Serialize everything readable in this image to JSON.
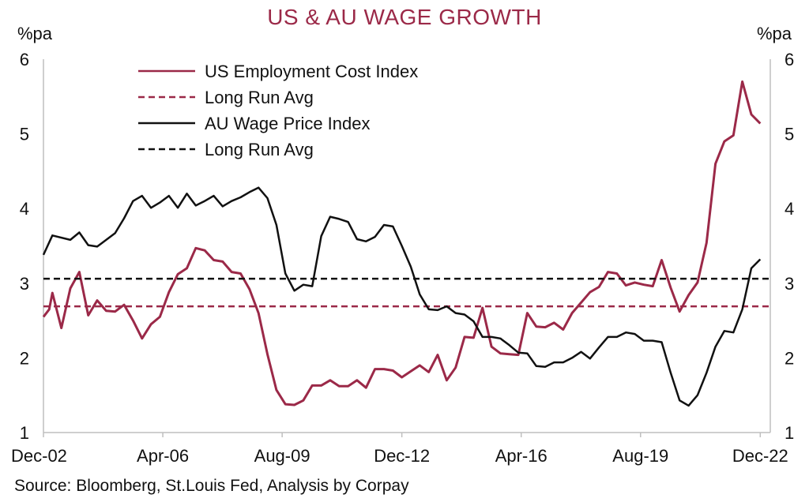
{
  "chart_data": {
    "type": "line",
    "title": "US & AU WAGE GROWTH",
    "ylabel_left": "%pa",
    "ylabel_right": "%pa",
    "source": "Source: Bloomberg, St.Louis Fed, Analysis by Corpay",
    "ylim": [
      1,
      6
    ],
    "yticks": [
      "1",
      "2",
      "3",
      "4",
      "5",
      "6"
    ],
    "xlim": [
      2002.92,
      2023.2
    ],
    "xtick_labels": [
      "Dec-02",
      "Apr-06",
      "Aug-09",
      "Dec-12",
      "Apr-16",
      "Aug-19",
      "Dec-22"
    ],
    "xtick_positions": [
      2002.92,
      2006.25,
      2009.58,
      2012.92,
      2016.25,
      2019.58,
      2022.92
    ],
    "grid": false,
    "legend_position": "top-left",
    "colors": {
      "us": "#9b2948",
      "au": "#111111",
      "title": "#9b2948"
    },
    "series": [
      {
        "name": "US Employment Cost Index",
        "style": "solid",
        "color": "#9b2948",
        "points": [
          [
            2002.92,
            2.55
          ],
          [
            2003.08,
            2.65
          ],
          [
            2003.17,
            2.87
          ],
          [
            2003.42,
            2.4
          ],
          [
            2003.67,
            2.93
          ],
          [
            2003.92,
            3.15
          ],
          [
            2004.17,
            2.57
          ],
          [
            2004.42,
            2.77
          ],
          [
            2004.67,
            2.63
          ],
          [
            2004.92,
            2.62
          ],
          [
            2005.17,
            2.71
          ],
          [
            2005.42,
            2.5
          ],
          [
            2005.67,
            2.26
          ],
          [
            2005.92,
            2.45
          ],
          [
            2006.17,
            2.55
          ],
          [
            2006.42,
            2.88
          ],
          [
            2006.67,
            3.12
          ],
          [
            2006.92,
            3.2
          ],
          [
            2007.17,
            3.47
          ],
          [
            2007.42,
            3.44
          ],
          [
            2007.67,
            3.31
          ],
          [
            2007.92,
            3.29
          ],
          [
            2008.17,
            3.15
          ],
          [
            2008.42,
            3.13
          ],
          [
            2008.67,
            2.92
          ],
          [
            2008.92,
            2.6
          ],
          [
            2009.17,
            2.05
          ],
          [
            2009.42,
            1.57
          ],
          [
            2009.67,
            1.38
          ],
          [
            2009.92,
            1.37
          ],
          [
            2010.17,
            1.43
          ],
          [
            2010.42,
            1.63
          ],
          [
            2010.67,
            1.63
          ],
          [
            2010.92,
            1.7
          ],
          [
            2011.17,
            1.62
          ],
          [
            2011.42,
            1.62
          ],
          [
            2011.67,
            1.7
          ],
          [
            2011.92,
            1.6
          ],
          [
            2012.17,
            1.85
          ],
          [
            2012.42,
            1.85
          ],
          [
            2012.67,
            1.83
          ],
          [
            2012.92,
            1.74
          ],
          [
            2013.17,
            1.82
          ],
          [
            2013.42,
            1.9
          ],
          [
            2013.67,
            1.81
          ],
          [
            2013.92,
            2.04
          ],
          [
            2014.17,
            1.7
          ],
          [
            2014.42,
            1.87
          ],
          [
            2014.67,
            2.28
          ],
          [
            2014.92,
            2.27
          ],
          [
            2015.17,
            2.67
          ],
          [
            2015.42,
            2.15
          ],
          [
            2015.67,
            2.06
          ],
          [
            2015.92,
            2.05
          ],
          [
            2016.17,
            2.04
          ],
          [
            2016.42,
            2.6
          ],
          [
            2016.67,
            2.42
          ],
          [
            2016.92,
            2.41
          ],
          [
            2017.17,
            2.47
          ],
          [
            2017.42,
            2.38
          ],
          [
            2017.67,
            2.6
          ],
          [
            2017.92,
            2.74
          ],
          [
            2018.17,
            2.88
          ],
          [
            2018.42,
            2.95
          ],
          [
            2018.67,
            3.15
          ],
          [
            2018.92,
            3.13
          ],
          [
            2019.17,
            2.97
          ],
          [
            2019.42,
            3.01
          ],
          [
            2019.67,
            2.98
          ],
          [
            2019.92,
            2.96
          ],
          [
            2020.17,
            3.31
          ],
          [
            2020.42,
            2.94
          ],
          [
            2020.67,
            2.62
          ],
          [
            2020.92,
            2.84
          ],
          [
            2021.17,
            3.01
          ],
          [
            2021.42,
            3.54
          ],
          [
            2021.67,
            4.6
          ],
          [
            2021.92,
            4.9
          ],
          [
            2022.17,
            4.98
          ],
          [
            2022.42,
            5.7
          ],
          [
            2022.67,
            5.26
          ],
          [
            2022.92,
            5.14
          ]
        ]
      },
      {
        "name": "Long Run Avg",
        "style": "dashed",
        "color": "#9b2948",
        "points": [
          [
            2002.92,
            2.69
          ],
          [
            2023.2,
            2.69
          ]
        ]
      },
      {
        "name": "AU Wage Price Index",
        "style": "solid",
        "color": "#111111",
        "points": [
          [
            2002.92,
            3.38
          ],
          [
            2003.17,
            3.64
          ],
          [
            2003.67,
            3.58
          ],
          [
            2003.92,
            3.68
          ],
          [
            2004.17,
            3.51
          ],
          [
            2004.42,
            3.49
          ],
          [
            2004.67,
            3.58
          ],
          [
            2004.92,
            3.67
          ],
          [
            2005.17,
            3.87
          ],
          [
            2005.42,
            4.1
          ],
          [
            2005.67,
            4.17
          ],
          [
            2005.92,
            4.01
          ],
          [
            2006.17,
            4.08
          ],
          [
            2006.42,
            4.17
          ],
          [
            2006.67,
            4.01
          ],
          [
            2006.92,
            4.2
          ],
          [
            2007.17,
            4.04
          ],
          [
            2007.42,
            4.1
          ],
          [
            2007.67,
            4.17
          ],
          [
            2007.92,
            4.03
          ],
          [
            2008.17,
            4.1
          ],
          [
            2008.42,
            4.15
          ],
          [
            2008.67,
            4.22
          ],
          [
            2008.92,
            4.28
          ],
          [
            2009.17,
            4.14
          ],
          [
            2009.42,
            3.78
          ],
          [
            2009.67,
            3.13
          ],
          [
            2009.92,
            2.9
          ],
          [
            2010.17,
            2.98
          ],
          [
            2010.42,
            2.96
          ],
          [
            2010.67,
            3.63
          ],
          [
            2010.92,
            3.89
          ],
          [
            2011.17,
            3.86
          ],
          [
            2011.42,
            3.82
          ],
          [
            2011.67,
            3.59
          ],
          [
            2011.92,
            3.56
          ],
          [
            2012.17,
            3.62
          ],
          [
            2012.42,
            3.78
          ],
          [
            2012.67,
            3.76
          ],
          [
            2012.92,
            3.5
          ],
          [
            2013.17,
            3.22
          ],
          [
            2013.42,
            2.85
          ],
          [
            2013.67,
            2.65
          ],
          [
            2013.92,
            2.64
          ],
          [
            2014.17,
            2.69
          ],
          [
            2014.42,
            2.6
          ],
          [
            2014.67,
            2.58
          ],
          [
            2014.92,
            2.49
          ],
          [
            2015.17,
            2.28
          ],
          [
            2015.42,
            2.28
          ],
          [
            2015.67,
            2.26
          ],
          [
            2015.92,
            2.17
          ],
          [
            2016.17,
            2.07
          ],
          [
            2016.42,
            2.06
          ],
          [
            2016.67,
            1.89
          ],
          [
            2016.92,
            1.88
          ],
          [
            2017.17,
            1.94
          ],
          [
            2017.42,
            1.94
          ],
          [
            2017.67,
            2.0
          ],
          [
            2017.92,
            2.08
          ],
          [
            2018.17,
            1.99
          ],
          [
            2018.42,
            2.14
          ],
          [
            2018.67,
            2.28
          ],
          [
            2018.92,
            2.28
          ],
          [
            2019.17,
            2.34
          ],
          [
            2019.42,
            2.32
          ],
          [
            2019.67,
            2.23
          ],
          [
            2019.92,
            2.23
          ],
          [
            2020.17,
            2.21
          ],
          [
            2020.42,
            1.8
          ],
          [
            2020.67,
            1.43
          ],
          [
            2020.92,
            1.36
          ],
          [
            2021.17,
            1.5
          ],
          [
            2021.42,
            1.8
          ],
          [
            2021.67,
            2.15
          ],
          [
            2021.92,
            2.36
          ],
          [
            2022.17,
            2.34
          ],
          [
            2022.42,
            2.65
          ],
          [
            2022.67,
            3.2
          ],
          [
            2022.92,
            3.32
          ]
        ]
      },
      {
        "name": "Long Run Avg",
        "style": "dashed",
        "color": "#111111",
        "points": [
          [
            2002.92,
            3.06
          ],
          [
            2023.2,
            3.06
          ]
        ]
      }
    ]
  }
}
